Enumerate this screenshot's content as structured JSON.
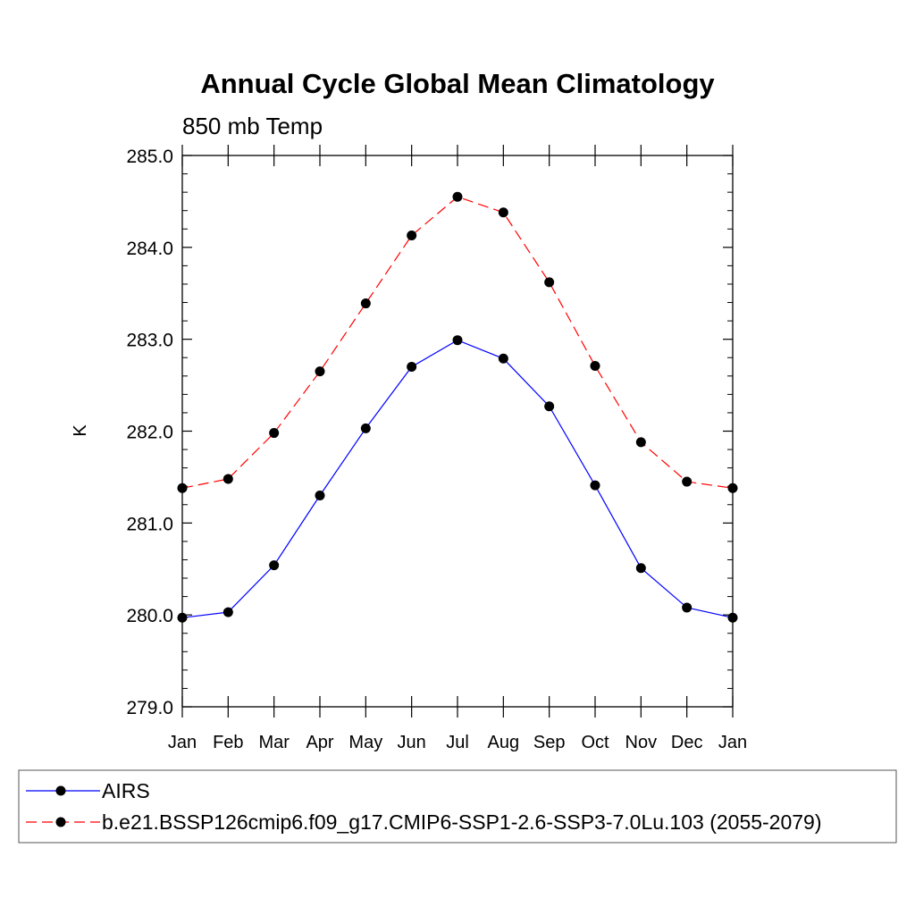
{
  "chart_data": {
    "type": "line",
    "title": "Annual Cycle Global Mean Climatology",
    "subtitle": "850 mb Temp",
    "xlabel": "",
    "ylabel": "K",
    "categories": [
      "Jan",
      "Feb",
      "Mar",
      "Apr",
      "May",
      "Jun",
      "Jul",
      "Aug",
      "Sep",
      "Oct",
      "Nov",
      "Dec",
      "Jan"
    ],
    "ylim": [
      279.0,
      285.0
    ],
    "yticks": [
      "279.0",
      "280.0",
      "281.0",
      "282.0",
      "283.0",
      "284.0",
      "285.0"
    ],
    "grid": false,
    "legend_position": "bottom",
    "series": [
      {
        "name": "AIRS",
        "color": "#0000ff",
        "line_style": "solid",
        "marker": "filled-circle",
        "values": [
          279.97,
          280.03,
          280.54,
          281.3,
          282.03,
          282.7,
          282.99,
          282.79,
          282.27,
          281.41,
          280.51,
          280.08,
          279.97
        ]
      },
      {
        "name": "b.e21.BSSP126cmip6.f09_g17.CMIP6-SSP1-2.6-SSP3-7.0Lu.103 (2055-2079)",
        "color": "#ff0000",
        "line_style": "dashed",
        "marker": "filled-circle",
        "values": [
          281.38,
          281.48,
          281.98,
          282.65,
          283.39,
          284.13,
          284.55,
          284.38,
          283.62,
          282.71,
          281.88,
          281.45,
          281.38
        ]
      }
    ]
  }
}
